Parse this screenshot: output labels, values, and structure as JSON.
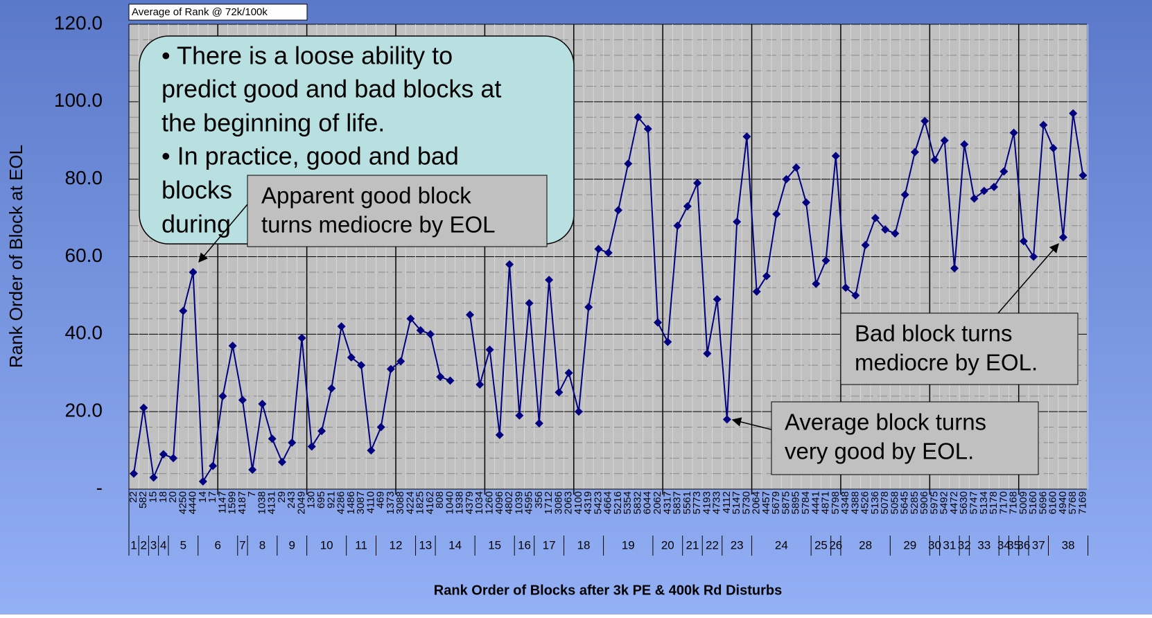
{
  "chart_data": {
    "type": "line",
    "legend_box": "Average of Rank @ 72k/100k",
    "y_axis_label": "Rank Order of Block at EOL",
    "x_axis_label": "Rank Order of Blocks after 3k PE & 400k Rd Disturbs",
    "ylim": [
      0,
      120
    ],
    "yticks": [
      {
        "value": 0,
        "label": "-"
      },
      {
        "value": 20,
        "label": "20.0"
      },
      {
        "value": 40,
        "label": "40.0"
      },
      {
        "value": 60,
        "label": "60.0"
      },
      {
        "value": 80,
        "label": "80.0"
      },
      {
        "value": 100,
        "label": "100.0"
      },
      {
        "value": 120,
        "label": "120.0"
      }
    ],
    "grid": true,
    "groups": [
      {
        "label": "1",
        "categories": [
          "22"
        ]
      },
      {
        "label": "2",
        "categories": [
          "582"
        ]
      },
      {
        "label": "3",
        "categories": [
          "15"
        ]
      },
      {
        "label": "4",
        "categories": [
          "18"
        ]
      },
      {
        "label": "5",
        "categories": [
          "20",
          "4250",
          "4440"
        ]
      },
      {
        "label": "6",
        "categories": [
          "14",
          "17",
          "1147",
          "1599"
        ]
      },
      {
        "label": "7",
        "categories": [
          "4187"
        ]
      },
      {
        "label": "8",
        "categories": [
          "7",
          "1038",
          "4131"
        ]
      },
      {
        "label": "9",
        "categories": [
          "29",
          "243",
          "2049"
        ]
      },
      {
        "label": "10",
        "categories": [
          "130",
          "695",
          "921",
          "4286"
        ]
      },
      {
        "label": "11",
        "categories": [
          "1486",
          "3087",
          "4110"
        ]
      },
      {
        "label": "12",
        "categories": [
          "469",
          "1373",
          "3088",
          "4224"
        ]
      },
      {
        "label": "13",
        "categories": [
          "1825",
          "4162"
        ]
      },
      {
        "label": "14",
        "categories": [
          "808",
          "1040",
          "1938",
          "4379"
        ]
      },
      {
        "label": "15",
        "categories": [
          "1034",
          "1260",
          "4096",
          "4802"
        ]
      },
      {
        "label": "16",
        "categories": [
          "1039",
          "4595"
        ]
      },
      {
        "label": "17",
        "categories": [
          "356",
          "1712",
          "3086"
        ]
      },
      {
        "label": "18",
        "categories": [
          "2063",
          "4100",
          "4319",
          "5423"
        ]
      },
      {
        "label": "19",
        "categories": [
          "4664",
          "5216",
          "5354",
          "5832",
          "6044"
        ]
      },
      {
        "label": "20",
        "categories": [
          "2062",
          "4317",
          "5837"
        ]
      },
      {
        "label": "21",
        "categories": [
          "5561",
          "5773"
        ]
      },
      {
        "label": "22",
        "categories": [
          "4193",
          "4733"
        ]
      },
      {
        "label": "23",
        "categories": [
          "4112",
          "5147",
          "5730"
        ]
      },
      {
        "label": "24",
        "categories": [
          "2064",
          "4457",
          "5679",
          "5875",
          "5895",
          "5784"
        ]
      },
      {
        "label": "25",
        "categories": [
          "4441",
          "4871"
        ]
      },
      {
        "label": "26",
        "categories": [
          "5798"
        ]
      },
      {
        "label": "28",
        "categories": [
          "4348",
          "4388",
          "4526",
          "5136",
          "5078"
        ]
      },
      {
        "label": "29",
        "categories": [
          "5058",
          "5645",
          "5285",
          "5906"
        ]
      },
      {
        "label": "30",
        "categories": [
          "5975"
        ]
      },
      {
        "label": "31",
        "categories": [
          "5492",
          "4472"
        ]
      },
      {
        "label": "32",
        "categories": [
          "5630"
        ]
      },
      {
        "label": "33",
        "categories": [
          "5747",
          "5134",
          "5178"
        ]
      },
      {
        "label": "34",
        "categories": [
          "7170"
        ]
      },
      {
        "label": "35",
        "categories": [
          "7168"
        ]
      },
      {
        "label": "36",
        "categories": [
          "5009"
        ]
      },
      {
        "label": "37",
        "categories": [
          "5160",
          "5696"
        ]
      },
      {
        "label": "38",
        "categories": [
          "6160",
          "4940",
          "5768",
          "7169"
        ]
      }
    ],
    "series": [
      {
        "name": "Average of Rank @ 72k/100k",
        "color": "#000080",
        "values": [
          4,
          21,
          3,
          9,
          8,
          46,
          56,
          2,
          6,
          24,
          37,
          23,
          5,
          22,
          13,
          7,
          12,
          39,
          11,
          15,
          26,
          42,
          34,
          32,
          10,
          16,
          31,
          33,
          44,
          41,
          40,
          29,
          28,
          null,
          45,
          27,
          36,
          14,
          58,
          19,
          48,
          17,
          54,
          25,
          30,
          20,
          47,
          62,
          61,
          72,
          84,
          96,
          93,
          43,
          38,
          68,
          73,
          79,
          35,
          49,
          18,
          69,
          91,
          51,
          55,
          71,
          80,
          83,
          74,
          53,
          59,
          86,
          52,
          50,
          63,
          70,
          67,
          66,
          76,
          87,
          95,
          85,
          90,
          57,
          89,
          75,
          77,
          78,
          82,
          92,
          64,
          60,
          94,
          88,
          65,
          97,
          81
        ]
      }
    ],
    "annotations": {
      "summary": [
        "• There is a loose ability to",
        "predict good and bad blocks at",
        "the beginning of life.",
        "• In practice, good and bad",
        "blocks",
        "during"
      ],
      "good_block": [
        "Apparent good block",
        "turns mediocre by EOL"
      ],
      "bad_block": [
        "Bad block  turns",
        "mediocre by EOL."
      ],
      "average_block": [
        "Average block  turns",
        "very good by EOL."
      ]
    }
  }
}
